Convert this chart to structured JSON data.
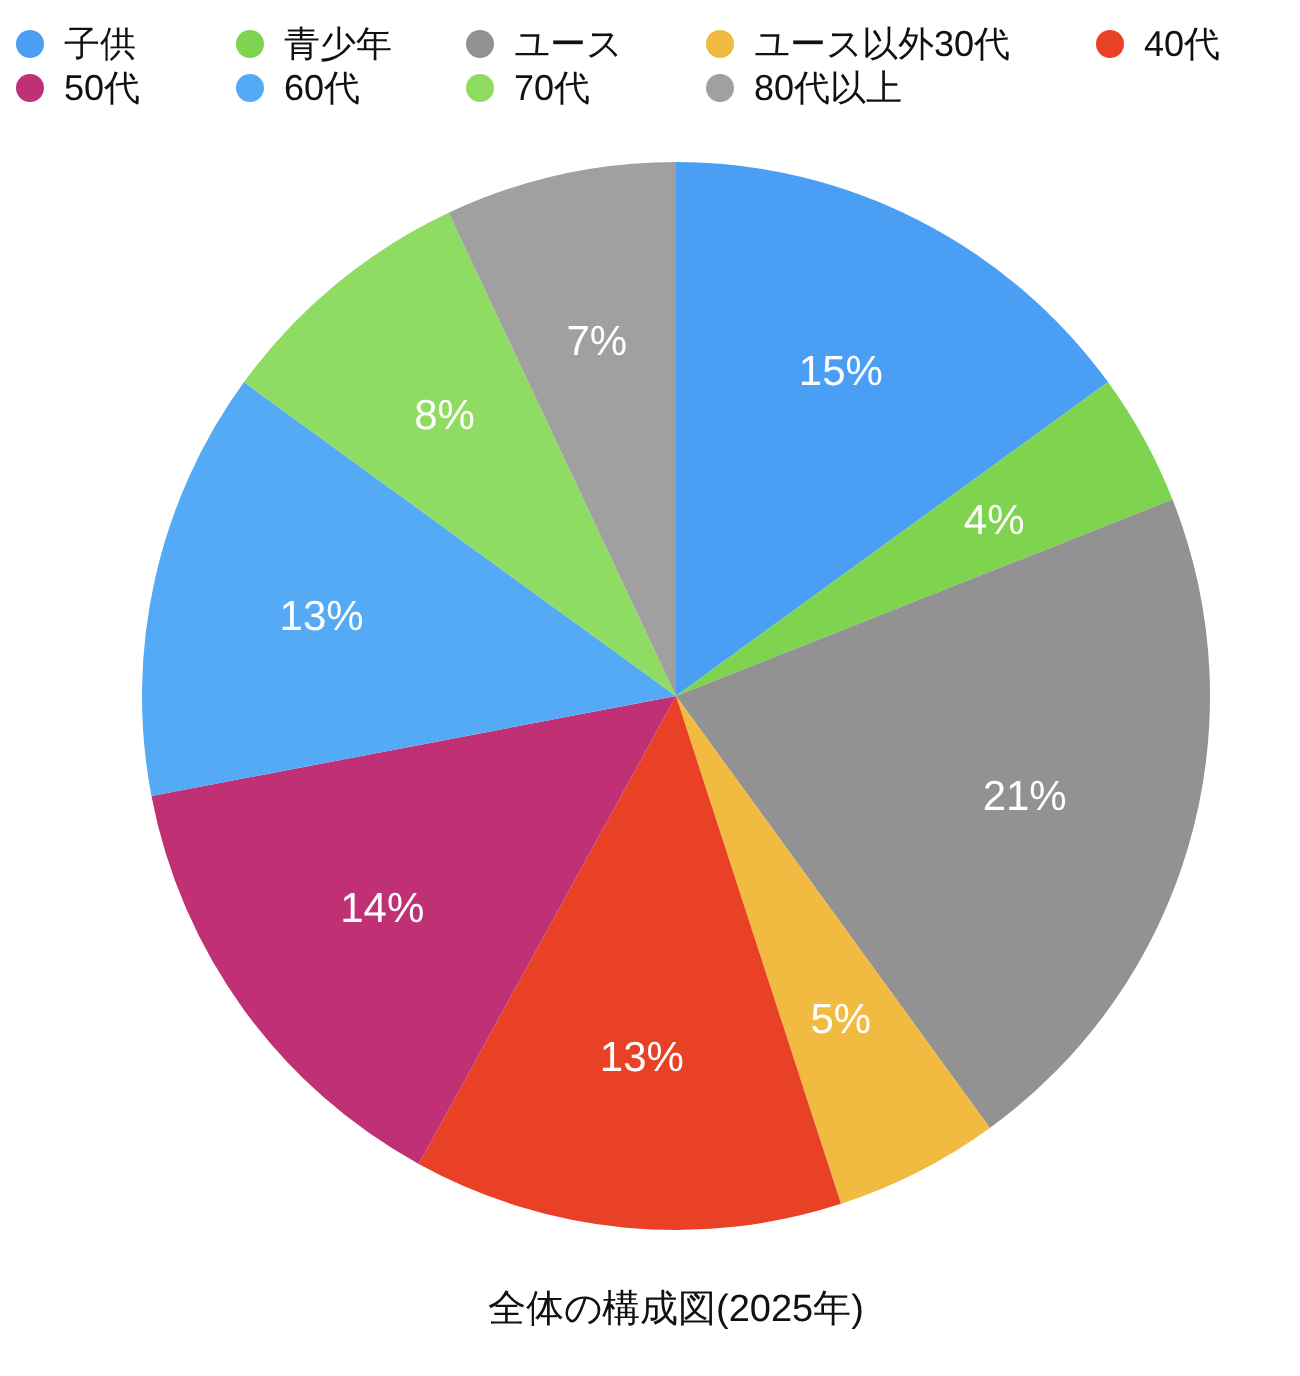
{
  "chart_data": {
    "type": "pie",
    "title": "全体の構成図(2025年)",
    "legend": "top",
    "categories": [
      "子供",
      "青少年",
      "ユース",
      "ユース以外30代",
      "40代",
      "50代",
      "60代",
      "70代",
      "80代以上"
    ],
    "values": [
      15,
      4,
      21,
      5,
      13,
      14,
      13,
      8,
      7
    ],
    "value_labels": [
      "15%",
      "4%",
      "21%",
      "5%",
      "13%",
      "14%",
      "13%",
      "8%",
      "7%"
    ],
    "colors": [
      "#4a9ff5",
      "#7ed44f",
      "#929292",
      "#f0bb40",
      "#e94126",
      "#c03075",
      "#55aaf5",
      "#8fdc62",
      "#a0a0a0"
    ]
  }
}
